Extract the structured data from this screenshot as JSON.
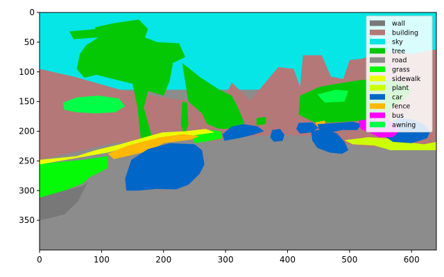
{
  "chart_data": {
    "type": "heatmap",
    "title": "",
    "xlabel": "",
    "ylabel": "",
    "x_range": [
      0,
      640
    ],
    "y_range": [
      400,
      0
    ],
    "x_ticks": [
      0,
      100,
      200,
      300,
      400,
      500,
      600
    ],
    "y_ticks": [
      0,
      50,
      100,
      150,
      200,
      250,
      300,
      350
    ],
    "grid": false,
    "legend_position": "top-right",
    "classes": [
      {
        "name": "wall",
        "color": "#787878"
      },
      {
        "name": "building",
        "color": "#b47878"
      },
      {
        "name": "sky",
        "color": "#06e6e6"
      },
      {
        "name": "tree",
        "color": "#04c803"
      },
      {
        "name": "road",
        "color": "#8c8c8c"
      },
      {
        "name": "grass",
        "color": "#04fa07"
      },
      {
        "name": "sidewalk",
        "color": "#ebff07"
      },
      {
        "name": "plant",
        "color": "#ccff04"
      },
      {
        "name": "car",
        "color": "#0066c8"
      },
      {
        "name": "fence",
        "color": "#ffb806"
      },
      {
        "name": "bus",
        "color": "#ff00ff"
      },
      {
        "name": "awning",
        "color": "#00ff47"
      }
    ],
    "regions": [
      {
        "class": "sky",
        "points": [
          [
            0,
            0
          ],
          [
            640,
            0
          ],
          [
            640,
            130
          ],
          [
            0,
            130
          ]
        ]
      },
      {
        "class": "building",
        "points": [
          [
            0,
            95
          ],
          [
            55,
            108
          ],
          [
            130,
            130
          ],
          [
            230,
            148
          ],
          [
            270,
            135
          ],
          [
            300,
            140
          ],
          [
            310,
            118
          ],
          [
            340,
            148
          ],
          [
            385,
            92
          ],
          [
            410,
            95
          ],
          [
            420,
            125
          ],
          [
            425,
            72
          ],
          [
            455,
            72
          ],
          [
            470,
            108
          ],
          [
            490,
            112
          ],
          [
            500,
            80
          ],
          [
            520,
            78
          ],
          [
            540,
            70
          ],
          [
            560,
            65
          ],
          [
            600,
            70
          ],
          [
            640,
            62
          ],
          [
            640,
            230
          ],
          [
            300,
            218
          ],
          [
            200,
            212
          ],
          [
            120,
            220
          ],
          [
            0,
            248
          ]
        ]
      },
      {
        "class": "tree",
        "points": [
          [
            90,
            25
          ],
          [
            120,
            18
          ],
          [
            160,
            12
          ],
          [
            175,
            28
          ],
          [
            170,
            42
          ],
          [
            190,
            50
          ],
          [
            225,
            52
          ],
          [
            235,
            75
          ],
          [
            215,
            85
          ],
          [
            210,
            115
          ],
          [
            200,
            140
          ],
          [
            175,
            132
          ],
          [
            168,
            160
          ],
          [
            180,
            205
          ],
          [
            182,
            245
          ],
          [
            168,
            255
          ],
          [
            162,
            200
          ],
          [
            158,
            160
          ],
          [
            150,
            120
          ],
          [
            118,
            112
          ],
          [
            92,
            105
          ],
          [
            72,
            110
          ],
          [
            60,
            95
          ],
          [
            65,
            70
          ],
          [
            75,
            55
          ],
          [
            95,
            42
          ],
          [
            55,
            45
          ],
          [
            48,
            32
          ],
          [
            90,
            28
          ]
        ]
      },
      {
        "class": "tree",
        "points": [
          [
            230,
            85
          ],
          [
            260,
            110
          ],
          [
            290,
            130
          ],
          [
            310,
            140
          ],
          [
            320,
            160
          ],
          [
            330,
            185
          ],
          [
            322,
            195
          ],
          [
            290,
            196
          ],
          [
            270,
            188
          ],
          [
            262,
            170
          ],
          [
            240,
            150
          ]
        ]
      },
      {
        "class": "tree",
        "points": [
          [
            420,
            140
          ],
          [
            452,
            125
          ],
          [
            480,
            120
          ],
          [
            510,
            115
          ],
          [
            550,
            110
          ],
          [
            585,
            120
          ],
          [
            600,
            130
          ],
          [
            590,
            145
          ],
          [
            570,
            160
          ],
          [
            555,
            180
          ],
          [
            520,
            182
          ],
          [
            480,
            185
          ],
          [
            445,
            186
          ],
          [
            418,
            172
          ]
        ]
      },
      {
        "class": "tree",
        "points": [
          [
            230,
            150
          ],
          [
            238,
            152
          ],
          [
            240,
            190
          ],
          [
            233,
            205
          ],
          [
            228,
            190
          ]
        ]
      },
      {
        "class": "tree",
        "points": [
          [
            350,
            178
          ],
          [
            365,
            176
          ],
          [
            365,
            188
          ],
          [
            350,
            190
          ]
        ]
      },
      {
        "class": "awning",
        "points": [
          [
            38,
            152
          ],
          [
            60,
            143
          ],
          [
            95,
            140
          ],
          [
            128,
            145
          ],
          [
            138,
            158
          ],
          [
            122,
            168
          ],
          [
            90,
            170
          ],
          [
            60,
            168
          ],
          [
            40,
            164
          ]
        ]
      },
      {
        "class": "awning",
        "points": [
          [
            448,
            138
          ],
          [
            478,
            130
          ],
          [
            498,
            132
          ],
          [
            492,
            150
          ],
          [
            460,
            152
          ]
        ]
      },
      {
        "class": "grass",
        "points": [
          [
            0,
            255
          ],
          [
            70,
            248
          ],
          [
            110,
            242
          ],
          [
            110,
            262
          ],
          [
            80,
            278
          ],
          [
            55,
            302
          ],
          [
            30,
            312
          ],
          [
            0,
            314
          ]
        ]
      },
      {
        "class": "grass",
        "points": [
          [
            245,
            208
          ],
          [
            275,
            198
          ],
          [
            292,
            200
          ],
          [
            295,
            212
          ],
          [
            270,
            217
          ],
          [
            250,
            220
          ]
        ]
      },
      {
        "class": "sidewalk",
        "points": [
          [
            0,
            248
          ],
          [
            60,
            242
          ],
          [
            90,
            232
          ],
          [
            130,
            222
          ],
          [
            170,
            210
          ],
          [
            198,
            202
          ],
          [
            235,
            200
          ],
          [
            268,
            196
          ],
          [
            282,
            202
          ],
          [
            255,
            206
          ],
          [
            230,
            210
          ],
          [
            190,
            214
          ],
          [
            150,
            225
          ],
          [
            110,
            236
          ],
          [
            60,
            245
          ],
          [
            0,
            256
          ]
        ]
      },
      {
        "class": "sidewalk",
        "points": [
          [
            75,
            288
          ],
          [
            110,
            282
          ],
          [
            118,
            290
          ],
          [
            88,
            298
          ]
        ]
      },
      {
        "class": "sidewalk",
        "points": [
          [
            262,
            270
          ],
          [
            285,
            262
          ],
          [
            292,
            275
          ],
          [
            270,
            290
          ],
          [
            258,
            298
          ],
          [
            255,
            288
          ]
        ]
      },
      {
        "class": "sidewalk",
        "points": [
          [
            0,
            340
          ],
          [
            16,
            336
          ],
          [
            12,
            362
          ],
          [
            0,
            365
          ]
        ]
      },
      {
        "class": "sidewalk",
        "points": [
          [
            200,
            376
          ],
          [
            224,
            378
          ],
          [
            230,
            398
          ],
          [
            210,
            400
          ],
          [
            198,
            400
          ]
        ]
      },
      {
        "class": "sidewalk",
        "points": [
          [
            255,
            398
          ],
          [
            272,
            392
          ],
          [
            285,
            400
          ]
        ]
      },
      {
        "class": "plant",
        "points": [
          [
            492,
            215
          ],
          [
            530,
            210
          ],
          [
            560,
            212
          ],
          [
            590,
            218
          ],
          [
            620,
            222
          ],
          [
            640,
            218
          ],
          [
            640,
            235
          ],
          [
            610,
            240
          ],
          [
            580,
            238
          ],
          [
            560,
            230
          ],
          [
            540,
            224
          ],
          [
            505,
            222
          ]
        ]
      },
      {
        "class": "fence",
        "points": [
          [
            110,
            238
          ],
          [
            140,
            225
          ],
          [
            165,
            218
          ],
          [
            195,
            210
          ],
          [
            230,
            205
          ],
          [
            258,
            208
          ],
          [
            245,
            214
          ],
          [
            200,
            220
          ],
          [
            180,
            232
          ],
          [
            150,
            240
          ],
          [
            120,
            247
          ]
        ]
      },
      {
        "class": "fence",
        "points": [
          [
            445,
            185
          ],
          [
            460,
            182
          ],
          [
            462,
            192
          ],
          [
            448,
            194
          ]
        ]
      },
      {
        "class": "road",
        "points": [
          [
            0,
            400
          ],
          [
            640,
            400
          ],
          [
            640,
            232
          ],
          [
            560,
            232
          ],
          [
            500,
            222
          ],
          [
            440,
            208
          ],
          [
            390,
            206
          ],
          [
            340,
            208
          ],
          [
            300,
            214
          ],
          [
            260,
            222
          ],
          [
            200,
            230
          ],
          [
            140,
            250
          ],
          [
            90,
            280
          ],
          [
            40,
            300
          ],
          [
            0,
            312
          ]
        ]
      },
      {
        "class": "wall",
        "points": [
          [
            0,
            312
          ],
          [
            40,
            300
          ],
          [
            70,
            292
          ],
          [
            78,
            285
          ],
          [
            62,
            318
          ],
          [
            40,
            340
          ],
          [
            18,
            346
          ],
          [
            0,
            350
          ]
        ]
      },
      {
        "class": "car",
        "points": [
          [
            148,
            248
          ],
          [
            175,
            230
          ],
          [
            210,
            220
          ],
          [
            250,
            222
          ],
          [
            262,
            232
          ],
          [
            266,
            256
          ],
          [
            258,
            272
          ],
          [
            240,
            290
          ],
          [
            220,
            298
          ],
          [
            188,
            297
          ],
          [
            160,
            300
          ],
          [
            140,
            300
          ],
          [
            138,
            280
          ]
        ]
      },
      {
        "class": "car",
        "points": [
          [
            295,
            205
          ],
          [
            310,
            192
          ],
          [
            330,
            188
          ],
          [
            352,
            192
          ],
          [
            362,
            200
          ],
          [
            345,
            206
          ],
          [
            320,
            212
          ],
          [
            298,
            216
          ]
        ]
      },
      {
        "class": "car",
        "points": [
          [
            375,
            198
          ],
          [
            388,
            196
          ],
          [
            395,
            206
          ],
          [
            392,
            216
          ],
          [
            378,
            218
          ],
          [
            372,
            210
          ]
        ]
      },
      {
        "class": "car",
        "points": [
          [
            418,
            186
          ],
          [
            440,
            185
          ],
          [
            450,
            194
          ],
          [
            438,
            202
          ],
          [
            420,
            204
          ],
          [
            414,
            196
          ]
        ]
      },
      {
        "class": "car",
        "points": [
          [
            448,
            188
          ],
          [
            480,
            186
          ],
          [
            505,
            184
          ],
          [
            520,
            188
          ],
          [
            512,
            198
          ],
          [
            488,
            198
          ],
          [
            470,
            202
          ],
          [
            452,
            200
          ]
        ]
      },
      {
        "class": "car",
        "points": [
          [
            438,
            200
          ],
          [
            460,
            196
          ],
          [
            480,
            204
          ],
          [
            492,
            218
          ],
          [
            498,
            232
          ],
          [
            488,
            238
          ],
          [
            468,
            236
          ],
          [
            448,
            228
          ],
          [
            440,
            216
          ]
        ]
      },
      {
        "class": "car",
        "points": [
          [
            555,
            190
          ],
          [
            580,
            178
          ],
          [
            600,
            180
          ],
          [
            620,
            188
          ],
          [
            630,
            200
          ],
          [
            625,
            212
          ],
          [
            600,
            220
          ],
          [
            570,
            218
          ],
          [
            556,
            208
          ]
        ]
      },
      {
        "class": "bus",
        "points": [
          [
            515,
            182
          ],
          [
            540,
            178
          ],
          [
            560,
            180
          ],
          [
            575,
            188
          ],
          [
            580,
            200
          ],
          [
            570,
            210
          ],
          [
            548,
            210
          ],
          [
            532,
            202
          ],
          [
            518,
            196
          ]
        ]
      }
    ]
  }
}
